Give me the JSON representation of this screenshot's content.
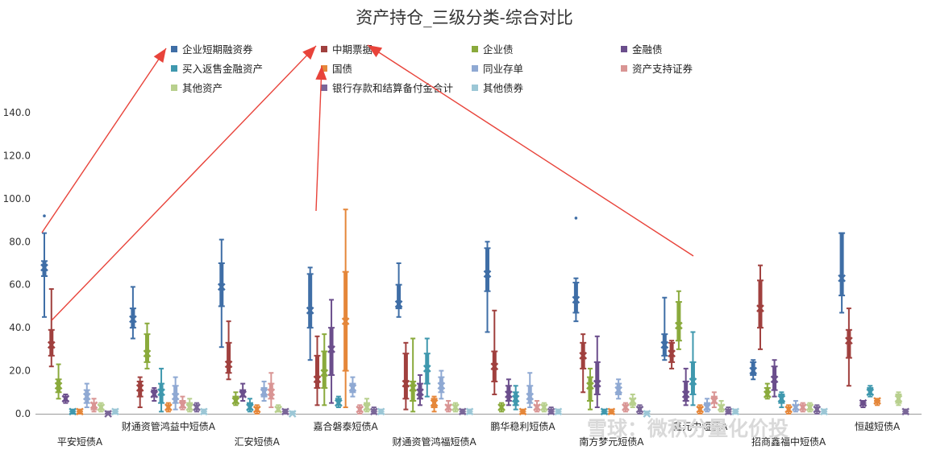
{
  "chart_data": {
    "type": "box",
    "title": "资产持仓_三级分类-综合对比",
    "xlabel": "",
    "ylabel": "",
    "ylim": [
      0,
      140
    ],
    "yticks": [
      "0.0",
      "20.0",
      "40.0",
      "60.0",
      "80.0",
      "100.0",
      "120.0",
      "140.0"
    ],
    "grid": false,
    "legend_position": "top",
    "categories": [
      "平安短债A",
      "财通资管鸿益中短债A",
      "汇安短债A",
      "嘉合磐泰短债A",
      "财通资管鸿福短债A",
      "鹏华稳利短债A",
      "南方梦元短债A",
      "鑫元中短债A",
      "招商鑫福中短债A",
      "恒越短债A"
    ],
    "series": [
      {
        "name": "企业短期融资券",
        "color": "#3f6ea6",
        "stats": [
          {
            "low": 45,
            "q1": 64,
            "mid": 68,
            "q3": 71,
            "high": 84,
            "out": [
              92
            ]
          },
          {
            "low": 35,
            "q1": 40,
            "mid": 44,
            "q3": 49,
            "high": 59
          },
          {
            "low": 31,
            "q1": 50,
            "mid": 59,
            "q3": 70,
            "high": 81
          },
          {
            "low": 25,
            "q1": 40,
            "mid": 48,
            "q3": 65,
            "high": 68
          },
          {
            "low": 45,
            "q1": 49,
            "mid": 51,
            "q3": 60,
            "high": 70
          },
          {
            "low": 38,
            "q1": 57,
            "mid": 65,
            "q3": 77,
            "high": 80
          },
          {
            "low": 43,
            "q1": 47,
            "mid": 53,
            "q3": 61,
            "high": 63,
            "out": [
              91
            ]
          },
          {
            "low": 25,
            "q1": 27,
            "mid": 32,
            "q3": 37,
            "high": 54
          },
          {
            "low": 16,
            "q1": 18,
            "mid": 20,
            "q3": 24,
            "high": 25
          },
          {
            "low": 47,
            "q1": 55,
            "mid": 63,
            "q3": 84,
            "high": 84
          }
        ]
      },
      {
        "name": "中期票据",
        "color": "#a0403e",
        "stats": [
          {
            "low": 22,
            "q1": 27,
            "mid": 32,
            "q3": 39,
            "high": 58
          },
          {
            "low": 3,
            "q1": 8,
            "mid": 12,
            "q3": 15,
            "high": 17
          },
          {
            "low": 16,
            "q1": 19,
            "mid": 23,
            "q3": 33,
            "high": 43
          },
          {
            "low": 4,
            "q1": 12,
            "mid": 16,
            "q3": 27,
            "high": 36
          },
          {
            "low": 2,
            "q1": 7,
            "mid": 14,
            "q3": 28,
            "high": 33
          },
          {
            "low": 9,
            "q1": 15,
            "mid": 22,
            "q3": 29,
            "high": 48
          },
          {
            "low": 10,
            "q1": 21,
            "mid": 27,
            "q3": 33,
            "high": 37
          },
          {
            "low": 21,
            "q1": 24,
            "mid": 28,
            "q3": 33,
            "high": 34
          },
          {
            "low": 30,
            "q1": 40,
            "mid": 49,
            "q3": 62,
            "high": 69
          },
          {
            "low": 13,
            "q1": 26,
            "mid": 34,
            "q3": 39,
            "high": 49
          }
        ]
      },
      {
        "name": "企业债",
        "color": "#8aaa3c",
        "stats": [
          {
            "low": 7,
            "q1": 10,
            "mid": 13,
            "q3": 16,
            "high": 23
          },
          {
            "low": 21,
            "q1": 24,
            "mid": 28,
            "q3": 37,
            "high": 42
          },
          {
            "low": 4,
            "q1": 5,
            "mid": 6,
            "q3": 8,
            "high": 10
          },
          {
            "low": 4,
            "q1": 12,
            "mid": 19,
            "q3": 29,
            "high": 37
          },
          {
            "low": 1,
            "q1": 6,
            "mid": 12,
            "q3": 15,
            "high": 35
          },
          {
            "low": 1,
            "q1": 2,
            "mid": 3,
            "q3": 4,
            "high": 5
          },
          {
            "low": 2,
            "q1": 6,
            "mid": 13,
            "q3": 17,
            "high": 21
          },
          {
            "low": 30,
            "q1": 34,
            "mid": 41,
            "q3": 52,
            "high": 57
          },
          {
            "low": 7,
            "q1": 8,
            "mid": 9,
            "q3": 12,
            "high": 14
          },
          {
            "low": 0,
            "q1": 0,
            "mid": 0,
            "q3": 0,
            "high": 0
          }
        ]
      },
      {
        "name": "金融债",
        "color": "#6b4e8c",
        "stats": [
          {
            "low": 5,
            "q1": 6,
            "mid": 7,
            "q3": 8,
            "high": 9
          },
          {
            "low": 6,
            "q1": 8,
            "mid": 9,
            "q3": 11,
            "high": 12
          },
          {
            "low": 6,
            "q1": 8,
            "mid": 9,
            "q3": 11,
            "high": 14
          },
          {
            "low": 5,
            "q1": 18,
            "mid": 30,
            "q3": 40,
            "high": 53
          },
          {
            "low": 4,
            "q1": 7,
            "mid": 10,
            "q3": 14,
            "high": 18
          },
          {
            "low": 4,
            "q1": 6,
            "mid": 9,
            "q3": 13,
            "high": 16
          },
          {
            "low": 3,
            "q1": 9,
            "mid": 14,
            "q3": 24,
            "high": 36
          },
          {
            "low": 4,
            "q1": 6,
            "mid": 9,
            "q3": 15,
            "high": 21
          },
          {
            "low": 8,
            "q1": 11,
            "mid": 16,
            "q3": 22,
            "high": 25
          },
          {
            "low": 3,
            "q1": 4,
            "mid": 5,
            "q3": 5,
            "high": 6
          }
        ]
      },
      {
        "name": "买入返售金融资产",
        "color": "#3f98ae",
        "stats": [
          {
            "low": 0,
            "q1": 0,
            "mid": 1,
            "q3": 1,
            "high": 2
          },
          {
            "low": 1,
            "q1": 5,
            "mid": 10,
            "q3": 14,
            "high": 21
          },
          {
            "low": 1,
            "q1": 2,
            "mid": 3,
            "q3": 5,
            "high": 7
          },
          {
            "low": 3,
            "q1": 4,
            "mid": 5,
            "q3": 7,
            "high": 8
          },
          {
            "low": 8,
            "q1": 14,
            "mid": 21,
            "q3": 28,
            "high": 35
          },
          {
            "low": 2,
            "q1": 4,
            "mid": 7,
            "q3": 10,
            "high": 13
          },
          {
            "low": 0,
            "q1": 0,
            "mid": 1,
            "q3": 1,
            "high": 2
          },
          {
            "low": 4,
            "q1": 9,
            "mid": 15,
            "q3": 24,
            "high": 38
          },
          {
            "low": 3,
            "q1": 5,
            "mid": 7,
            "q3": 9,
            "high": 10
          },
          {
            "low": 8,
            "q1": 9,
            "mid": 10,
            "q3": 12,
            "high": 13
          }
        ]
      },
      {
        "name": "国债",
        "color": "#e5873a",
        "stats": [
          {
            "low": 0,
            "q1": 0,
            "mid": 1,
            "q3": 1,
            "high": 2
          },
          {
            "low": 1,
            "q1": 2,
            "mid": 3,
            "q3": 4,
            "high": 5
          },
          {
            "low": 0,
            "q1": 1,
            "mid": 2,
            "q3": 3,
            "high": 4
          },
          {
            "low": 3,
            "q1": 20,
            "mid": 43,
            "q3": 66,
            "high": 95
          },
          {
            "low": 1,
            "q1": 3,
            "mid": 5,
            "q3": 7,
            "high": 8
          },
          {
            "low": 0,
            "q1": 0,
            "mid": 1,
            "q3": 1,
            "high": 2
          },
          {
            "low": 0,
            "q1": 0,
            "mid": 1,
            "q3": 1,
            "high": 2
          },
          {
            "low": 0,
            "q1": 1,
            "mid": 2,
            "q3": 3,
            "high": 4
          },
          {
            "low": 0,
            "q1": 1,
            "mid": 2,
            "q3": 3,
            "high": 4
          },
          {
            "low": 4,
            "q1": 5,
            "mid": 6,
            "q3": 6,
            "high": 7
          }
        ]
      },
      {
        "name": "同业存单",
        "color": "#8fa9d3",
        "stats": [
          {
            "low": 3,
            "q1": 5,
            "mid": 8,
            "q3": 11,
            "high": 14
          },
          {
            "low": 2,
            "q1": 5,
            "mid": 8,
            "q3": 13,
            "high": 17
          },
          {
            "low": 6,
            "q1": 8,
            "mid": 10,
            "q3": 12,
            "high": 15
          },
          {
            "low": 8,
            "q1": 10,
            "mid": 12,
            "q3": 14,
            "high": 17
          },
          {
            "low": 7,
            "q1": 10,
            "mid": 13,
            "q3": 17,
            "high": 20
          },
          {
            "low": 3,
            "q1": 5,
            "mid": 8,
            "q3": 13,
            "high": 19
          },
          {
            "low": 7,
            "q1": 9,
            "mid": 11,
            "q3": 14,
            "high": 16
          },
          {
            "low": 1,
            "q1": 2,
            "mid": 3,
            "q3": 5,
            "high": 7
          },
          {
            "low": 1,
            "q1": 2,
            "mid": 3,
            "q3": 4,
            "high": 6
          },
          {
            "low": 0,
            "q1": 0,
            "mid": 0,
            "q3": 0,
            "high": 0
          }
        ]
      },
      {
        "name": "资产支持证券",
        "color": "#d99594",
        "stats": [
          {
            "low": 1,
            "q1": 2,
            "mid": 4,
            "q3": 5,
            "high": 7
          },
          {
            "low": 2,
            "q1": 3,
            "mid": 4,
            "q3": 6,
            "high": 8
          },
          {
            "low": 3,
            "q1": 7,
            "mid": 10,
            "q3": 14,
            "high": 19
          },
          {
            "low": 0,
            "q1": 1,
            "mid": 2,
            "q3": 3,
            "high": 4
          },
          {
            "low": 1,
            "q1": 2,
            "mid": 3,
            "q3": 4,
            "high": 6
          },
          {
            "low": 1,
            "q1": 2,
            "mid": 3,
            "q3": 4,
            "high": 6
          },
          {
            "low": 1,
            "q1": 2,
            "mid": 3,
            "q3": 4,
            "high": 5
          },
          {
            "low": 3,
            "q1": 5,
            "mid": 6,
            "q3": 8,
            "high": 10
          },
          {
            "low": 1,
            "q1": 2,
            "mid": 3,
            "q3": 4,
            "high": 5
          },
          {
            "low": 0,
            "q1": 0,
            "mid": 0,
            "q3": 0,
            "high": 0
          }
        ]
      },
      {
        "name": "其他资产",
        "color": "#b8d08e",
        "stats": [
          {
            "low": 1,
            "q1": 2,
            "mid": 3,
            "q3": 4,
            "high": 5
          },
          {
            "low": 1,
            "q1": 2,
            "mid": 3,
            "q3": 5,
            "high": 7
          },
          {
            "low": 1,
            "q1": 1,
            "mid": 2,
            "q3": 3,
            "high": 4
          },
          {
            "low": 1,
            "q1": 2,
            "mid": 3,
            "q3": 5,
            "high": 7
          },
          {
            "low": 1,
            "q1": 2,
            "mid": 3,
            "q3": 4,
            "high": 5
          },
          {
            "low": 1,
            "q1": 2,
            "mid": 3,
            "q3": 4,
            "high": 5
          },
          {
            "low": 3,
            "q1": 4,
            "mid": 6,
            "q3": 7,
            "high": 9
          },
          {
            "low": 1,
            "q1": 2,
            "mid": 3,
            "q3": 4,
            "high": 6
          },
          {
            "low": 1,
            "q1": 2,
            "mid": 3,
            "q3": 4,
            "high": 5
          },
          {
            "low": 4,
            "q1": 5,
            "mid": 7,
            "q3": 9,
            "high": 10
          }
        ]
      },
      {
        "name": "银行存款和结算备付金合计",
        "color": "#7a6698",
        "stats": [
          {
            "low": 0,
            "q1": 0,
            "mid": 0,
            "q3": 1,
            "high": 1
          },
          {
            "low": 1,
            "q1": 2,
            "mid": 3,
            "q3": 4,
            "high": 5
          },
          {
            "low": 0,
            "q1": 0,
            "mid": 1,
            "q3": 1,
            "high": 2
          },
          {
            "low": 0,
            "q1": 1,
            "mid": 1,
            "q3": 2,
            "high": 3
          },
          {
            "low": 0,
            "q1": 0,
            "mid": 1,
            "q3": 1,
            "high": 2
          },
          {
            "low": 0,
            "q1": 1,
            "mid": 1,
            "q3": 2,
            "high": 3
          },
          {
            "low": 0,
            "q1": 1,
            "mid": 2,
            "q3": 3,
            "high": 4
          },
          {
            "low": 0,
            "q1": 1,
            "mid": 1,
            "q3": 2,
            "high": 3
          },
          {
            "low": 0,
            "q1": 1,
            "mid": 2,
            "q3": 3,
            "high": 4
          },
          {
            "low": 0,
            "q1": 0,
            "mid": 1,
            "q3": 1,
            "high": 2
          }
        ]
      },
      {
        "name": "其他债券",
        "color": "#9cc7d6",
        "stats": [
          {
            "low": 0,
            "q1": 0,
            "mid": 1,
            "q3": 1,
            "high": 2
          },
          {
            "low": 0,
            "q1": 0,
            "mid": 1,
            "q3": 1,
            "high": 2
          },
          {
            "low": 0,
            "q1": 0,
            "mid": 0,
            "q3": 1,
            "high": 1
          },
          {
            "low": 0,
            "q1": 0,
            "mid": 1,
            "q3": 1,
            "high": 2
          },
          {
            "low": 0,
            "q1": 0,
            "mid": 1,
            "q3": 1,
            "high": 2
          },
          {
            "low": 0,
            "q1": 0,
            "mid": 1,
            "q3": 1,
            "high": 2
          },
          {
            "low": 0,
            "q1": 0,
            "mid": 0,
            "q3": 1,
            "high": 1
          },
          {
            "low": 0,
            "q1": 0,
            "mid": 1,
            "q3": 1,
            "high": 2
          },
          {
            "low": 0,
            "q1": 0,
            "mid": 1,
            "q3": 1,
            "high": 2
          },
          {
            "low": 0,
            "q1": 0,
            "mid": 0,
            "q3": 0,
            "high": 0
          }
        ]
      }
    ]
  },
  "watermark": "雪球：微积分量化价投",
  "annotation_color": "#e8433a"
}
